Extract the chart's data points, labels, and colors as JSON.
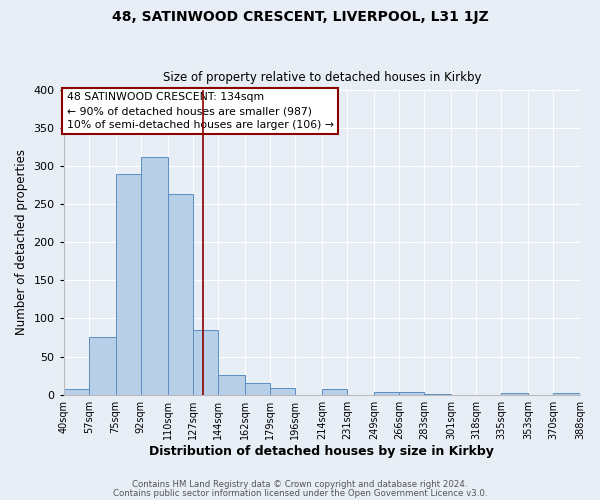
{
  "title": "48, SATINWOOD CRESCENT, LIVERPOOL, L31 1JZ",
  "subtitle": "Size of property relative to detached houses in Kirkby",
  "xlabel": "Distribution of detached houses by size in Kirkby",
  "ylabel": "Number of detached properties",
  "bin_edges": [
    40,
    57,
    75,
    92,
    110,
    127,
    144,
    162,
    179,
    196,
    214,
    231,
    249,
    266,
    283,
    301,
    318,
    335,
    353,
    370,
    388
  ],
  "bar_heights": [
    8,
    76,
    290,
    312,
    263,
    85,
    26,
    16,
    9,
    0,
    8,
    0,
    4,
    4,
    1,
    0,
    0,
    2,
    0,
    2
  ],
  "bar_color": "#b8cfe8",
  "bar_edge_color": "#5b8ec4",
  "property_size": 134,
  "vline_color": "#8b0000",
  "annotation_line1": "48 SATINWOOD CRESCENT: 134sqm",
  "annotation_line2": "← 90% of detached houses are smaller (987)",
  "annotation_line3": "10% of semi-detached houses are larger (106) →",
  "annotation_box_color": "#ffffff",
  "annotation_box_edge": "#8b0000",
  "ylim": [
    0,
    400
  ],
  "yticks": [
    0,
    50,
    100,
    150,
    200,
    250,
    300,
    350,
    400
  ],
  "background_color": "#e8eef5",
  "footer_line1": "Contains HM Land Registry data © Crown copyright and database right 2024.",
  "footer_line2": "Contains public sector information licensed under the Open Government Licence v3.0.",
  "tick_labels": [
    "40sqm",
    "57sqm",
    "75sqm",
    "92sqm",
    "110sqm",
    "127sqm",
    "144sqm",
    "162sqm",
    "179sqm",
    "196sqm",
    "214sqm",
    "231sqm",
    "249sqm",
    "266sqm",
    "283sqm",
    "301sqm",
    "318sqm",
    "335sqm",
    "353sqm",
    "370sqm",
    "388sqm"
  ]
}
